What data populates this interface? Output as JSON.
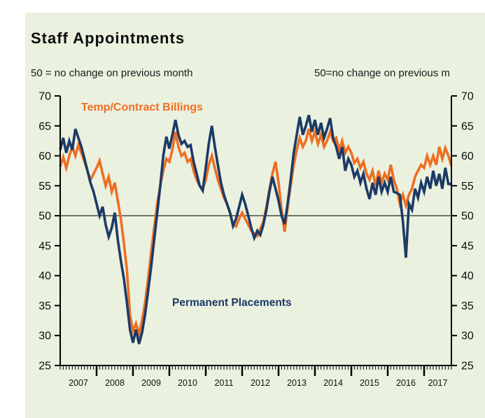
{
  "header": {
    "title": "Staff Appointments",
    "subtitle_left": "50 = no change on previous month",
    "subtitle_right": "50=no change on previous m"
  },
  "colors": {
    "panel_background": "#ebf1df",
    "axis": "#000000",
    "reference_line": "#3a3a3a",
    "temp_billings": "#ee6f22",
    "permanent_placements": "#1c3a66"
  },
  "chart_data": {
    "type": "line",
    "title": "Staff Appointments",
    "xlabel": "",
    "ylabel": "Index, 50 = no change on previous month",
    "ylim": [
      25,
      70
    ],
    "y_ticks": [
      70,
      65,
      60,
      55,
      50,
      45,
      40,
      35,
      30,
      25
    ],
    "reference_value": 50,
    "x_start": "2007-01",
    "x_end": "2017-10",
    "x_year_labels": [
      "2007",
      "2008",
      "2009",
      "2010",
      "2011",
      "2012",
      "2013",
      "2014",
      "2015",
      "2016",
      "2017"
    ],
    "grid": "off",
    "legend_position": "inside-annotations",
    "series": [
      {
        "name": "Temp/Contract Billings",
        "color": "#ee6f22",
        "values": [
          58.2,
          59.8,
          58.0,
          60.0,
          61.5,
          60.0,
          61.8,
          60.5,
          59.0,
          57.5,
          56.0,
          57.0,
          58.0,
          59.2,
          57.0,
          55.0,
          56.5,
          54.0,
          55.5,
          52.5,
          49.5,
          45.5,
          41.0,
          33.5,
          30.8,
          32.0,
          30.3,
          32.5,
          35.5,
          39.5,
          44.0,
          48.0,
          52.0,
          55.0,
          57.5,
          59.5,
          59.0,
          61.0,
          64.0,
          61.5,
          60.0,
          60.5,
          59.0,
          59.5,
          57.5,
          56.0,
          55.0,
          54.5,
          56.0,
          58.5,
          60.0,
          58.0,
          56.0,
          54.5,
          53.0,
          52.0,
          50.5,
          48.5,
          48.2,
          49.5,
          50.5,
          49.5,
          48.5,
          47.5,
          47.0,
          46.6,
          47.8,
          49.0,
          51.5,
          54.5,
          57.0,
          59.0,
          55.5,
          51.0,
          47.3,
          51.5,
          55.0,
          58.5,
          61.0,
          63.0,
          61.5,
          62.5,
          64.5,
          62.5,
          64.0,
          62.0,
          63.5,
          61.5,
          62.5,
          64.0,
          62.5,
          63.0,
          61.0,
          62.5,
          60.5,
          61.5,
          60.5,
          58.8,
          59.5,
          58.0,
          59.0,
          57.0,
          56.0,
          57.5,
          55.0,
          57.5,
          55.5,
          57.0,
          56.0,
          58.5,
          56.0,
          54.5,
          52.0,
          53.5,
          51.7,
          53.5,
          54.5,
          56.5,
          57.5,
          58.5,
          58.0,
          60.0,
          58.5,
          60.0,
          58.5,
          61.5,
          59.5,
          61.3,
          60.0,
          58.3
        ]
      },
      {
        "name": "Permanent Placements",
        "color": "#1c3a66",
        "values": [
          61.0,
          63.0,
          60.5,
          62.5,
          61.0,
          64.5,
          63.0,
          61.5,
          59.5,
          57.5,
          55.5,
          54.0,
          52.0,
          50.0,
          51.5,
          48.5,
          46.5,
          48.0,
          50.5,
          46.0,
          42.5,
          39.5,
          35.5,
          31.0,
          28.8,
          31.0,
          28.6,
          30.5,
          33.5,
          37.5,
          41.5,
          46.0,
          50.5,
          55.0,
          60.0,
          63.2,
          61.2,
          63.5,
          66.0,
          63.5,
          62.0,
          62.5,
          61.5,
          61.8,
          59.0,
          57.0,
          55.0,
          54.2,
          58.0,
          62.0,
          65.0,
          61.5,
          58.5,
          55.5,
          53.5,
          52.0,
          50.5,
          48.3,
          49.5,
          51.5,
          53.5,
          52.0,
          50.0,
          48.0,
          46.3,
          47.5,
          46.8,
          48.5,
          51.0,
          54.0,
          56.5,
          54.5,
          52.5,
          50.0,
          48.6,
          52.0,
          56.0,
          60.5,
          63.5,
          66.5,
          63.5,
          65.0,
          66.8,
          64.0,
          66.0,
          63.5,
          65.5,
          63.0,
          64.5,
          66.3,
          63.0,
          61.5,
          59.5,
          61.5,
          57.5,
          59.5,
          58.5,
          56.5,
          57.5,
          55.5,
          57.0,
          54.5,
          52.8,
          55.5,
          53.5,
          56.5,
          54.0,
          55.5,
          54.0,
          56.5,
          54.0,
          53.8,
          53.5,
          49.0,
          43.0,
          52.0,
          51.0,
          54.5,
          53.0,
          55.5,
          54.0,
          56.5,
          54.5,
          57.5,
          55.0,
          57.0,
          54.5,
          58.0,
          55.3,
          55.3
        ]
      }
    ]
  }
}
